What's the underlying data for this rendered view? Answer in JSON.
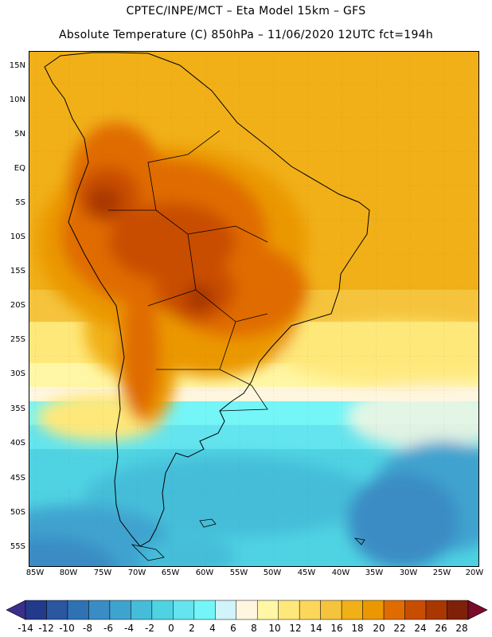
{
  "header": {
    "title_line1": "CPTEC/INPE/MCT –  Eta Model 15km – GFS",
    "title_line2": "Absolute Temperature (C) 850hPa – 11/06/2020 12UTC fct=194h"
  },
  "map": {
    "lat_labels": [
      "15N",
      "10N",
      "5N",
      "EQ",
      "5S",
      "10S",
      "15S",
      "20S",
      "25S",
      "30S",
      "35S",
      "40S",
      "45S",
      "50S",
      "55S"
    ],
    "lon_labels": [
      "85W",
      "80W",
      "75W",
      "70W",
      "65W",
      "60W",
      "55W",
      "50W",
      "45W",
      "40W",
      "35W",
      "30W",
      "25W",
      "20W"
    ]
  },
  "colorbar": {
    "labels": [
      "-14",
      "-12",
      "-10",
      "-8",
      "-6",
      "-4",
      "-2",
      "0",
      "2",
      "4",
      "6",
      "8",
      "10",
      "12",
      "14",
      "16",
      "18",
      "20",
      "22",
      "24",
      "26",
      "28"
    ],
    "colors": [
      "#233a8a",
      "#2b56a0",
      "#2f72b3",
      "#3a8cc4",
      "#3fa3cf",
      "#45bdd9",
      "#4fd3e3",
      "#63e4ee",
      "#74f5f7",
      "#d0f4fa",
      "#fff6e0",
      "#fff7a6",
      "#ffe87a",
      "#fcd75a",
      "#f5c43c",
      "#f1b018",
      "#eb9800",
      "#e06c00",
      "#c94d00",
      "#a83800",
      "#7e2108"
    ],
    "low_color": "#3a2f8a",
    "high_color": "#7a0a2a"
  }
}
